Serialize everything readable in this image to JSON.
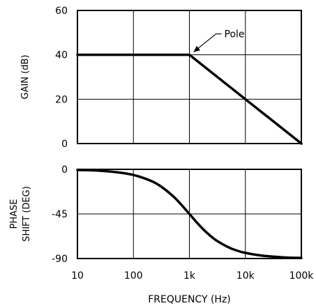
{
  "chart_data": [
    {
      "type": "line",
      "title": "",
      "ylabel": "GAIN (dB)",
      "x_scale": "log",
      "xlim": [
        10,
        100000
      ],
      "ylim": [
        0,
        60
      ],
      "yticks": [
        0,
        20,
        40,
        60
      ],
      "ytick_labels": [
        "0",
        "20",
        "40",
        "60"
      ],
      "grid": true,
      "series": [
        {
          "x": [
            10,
            1000,
            100000
          ],
          "y": [
            40,
            40,
            0
          ]
        }
      ],
      "annotations": [
        {
          "text": "Pole",
          "x": 1000,
          "y": 40
        }
      ]
    },
    {
      "type": "line",
      "title": "",
      "ylabel_lines": [
        "PHASE",
        "SHIFT (DEG)"
      ],
      "xlabel": "FREQUENCY (Hz)",
      "x_scale": "log",
      "xlim": [
        10,
        100000
      ],
      "ylim": [
        -90,
        0
      ],
      "yticks": [
        0,
        -45,
        -90
      ],
      "ytick_labels": [
        "0",
        "-45",
        "-90"
      ],
      "xticks": [
        10,
        100,
        1000,
        10000,
        100000
      ],
      "xtick_labels": [
        "10",
        "100",
        "1k",
        "10k",
        "100k"
      ],
      "grid": true,
      "series": [
        {
          "x": [
            10,
            20,
            50,
            100,
            200,
            300,
            500,
            700,
            1000,
            1500,
            2000,
            3000,
            5000,
            7000,
            10000,
            20000,
            50000,
            100000
          ],
          "y": [
            -0.6,
            -1.1,
            -2.9,
            -5.7,
            -11.3,
            -16.7,
            -26.6,
            -35.0,
            -45.0,
            -56.3,
            -63.4,
            -71.6,
            -78.7,
            -81.9,
            -84.3,
            -87.1,
            -88.9,
            -89.4
          ]
        }
      ]
    }
  ]
}
